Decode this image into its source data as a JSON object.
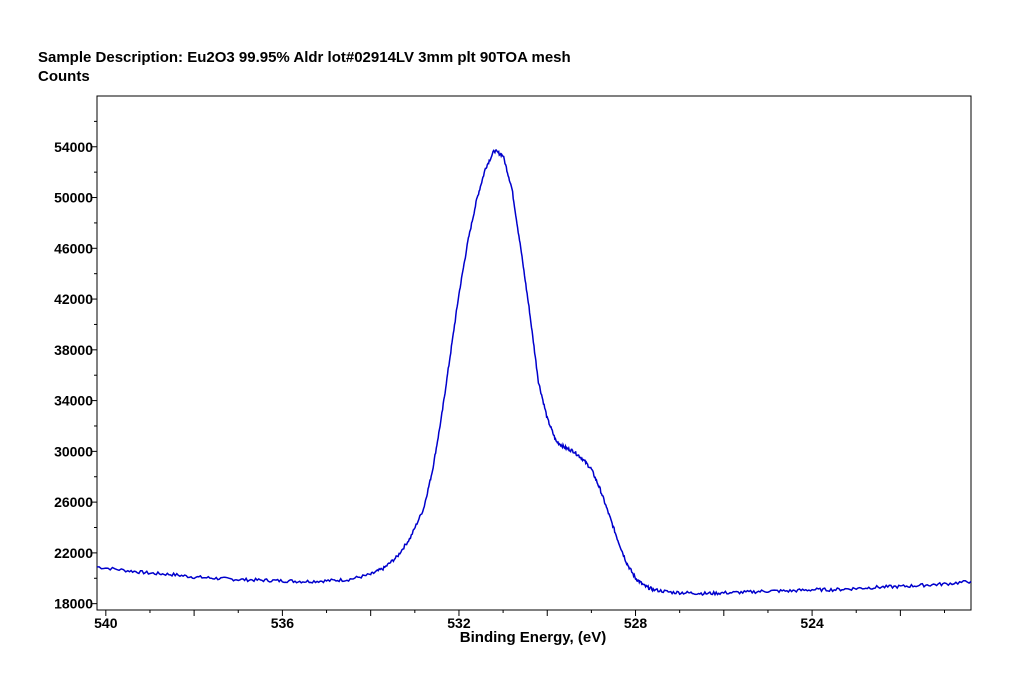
{
  "chart_data": {
    "type": "line",
    "title": "Sample Description:  Eu2O3 99.95% Aldr lot#02914LV 3mm plt 90TOA mesh",
    "ylabel": "Counts",
    "xlabel": "Binding Energy, (eV)",
    "xlim": [
      540.2,
      520.4
    ],
    "ylim": [
      17500,
      58000
    ],
    "x_ticks": [
      540,
      536,
      532,
      528,
      524
    ],
    "y_ticks": [
      18000,
      22000,
      26000,
      30000,
      34000,
      38000,
      42000,
      46000,
      50000,
      54000
    ],
    "grid": false,
    "line_color": "#0000cc",
    "series": [
      {
        "x": [
          540.2,
          539.5,
          539,
          538.5,
          538,
          537.5,
          537,
          536.5,
          536,
          535.5,
          535,
          534.5,
          534,
          533.7,
          533.4,
          533.1,
          532.8,
          532.6,
          532.4,
          532.2,
          532.0,
          531.8,
          531.6,
          531.4,
          531.2,
          531.0,
          530.8,
          530.6,
          530.4,
          530.2,
          530.0,
          529.8,
          529.6,
          529.4,
          529.2,
          529.0,
          528.8,
          528.6,
          528.4,
          528.2,
          528.0,
          527.8,
          527.6,
          527.2,
          526.8,
          526.4,
          526,
          525.5,
          525,
          524.5,
          524,
          523.5,
          523,
          522.5,
          522,
          521.5,
          521,
          520.4
        ],
        "y": [
          20900,
          20600,
          20400,
          20300,
          20100,
          20000,
          19900,
          19850,
          19800,
          19750,
          19800,
          19900,
          20300,
          20800,
          21700,
          23200,
          25500,
          28500,
          32600,
          37500,
          42400,
          46500,
          49800,
          52300,
          53700,
          53300,
          50700,
          46000,
          41000,
          35500,
          32600,
          30800,
          30300,
          30000,
          29400,
          28600,
          27000,
          25000,
          23000,
          21200,
          20000,
          19400,
          19100,
          18900,
          18850,
          18800,
          18850,
          18900,
          19000,
          19000,
          19100,
          19100,
          19200,
          19300,
          19350,
          19450,
          19550,
          19750
        ]
      }
    ]
  }
}
